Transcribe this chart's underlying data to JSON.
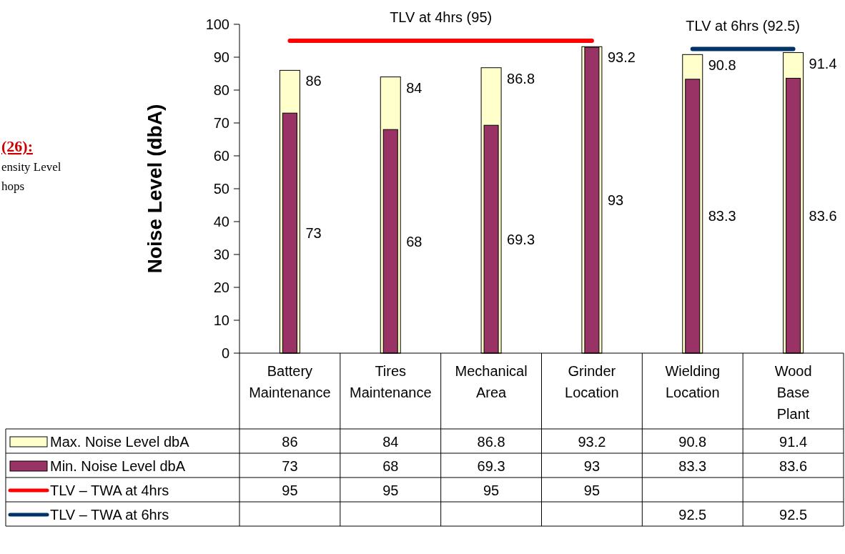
{
  "chart_data": {
    "type": "bar",
    "ylabel": "Noise Level (dbA)",
    "categories": [
      "Battery Maintenance",
      "Tires Maintenance",
      "Mechanical Area",
      "Grinder Location",
      "Wielding Location",
      "Wood Base Plant"
    ],
    "series": [
      {
        "name": "Max. Noise Level dbA",
        "color": "#ffffcc",
        "values": [
          86,
          84,
          86.8,
          93.2,
          90.8,
          91.4
        ]
      },
      {
        "name": "Min. Noise Level dbA",
        "color": "#993366",
        "values": [
          73,
          68,
          69.3,
          93,
          83.3,
          83.6
        ]
      },
      {
        "name": "TLV – TWA at 4hrs",
        "type": "line",
        "color": "#ff0000",
        "values": [
          95,
          95,
          95,
          95,
          null,
          null
        ]
      },
      {
        "name": "TLV – TWA at 6hrs",
        "type": "line",
        "color": "#003366",
        "values": [
          null,
          null,
          null,
          null,
          92.5,
          92.5
        ]
      }
    ],
    "ylim": [
      0,
      100
    ],
    "yticks": [
      0,
      10,
      20,
      30,
      40,
      50,
      60,
      70,
      80,
      90,
      100
    ],
    "grid": false,
    "legend": "bottom",
    "data_labels": true,
    "annotations": [
      {
        "text": "TLV at 4hrs (95)",
        "y": 95
      },
      {
        "text": "TLV at 6hrs (92.5)",
        "y": 92.5
      },
      "(26):",
      "ensity Level",
      "hops",
      {
        "text": "86",
        "x": "Battery Maintenance",
        "y": 86
      },
      {
        "text": "84",
        "x": "Tires Maintenance",
        "y": 84
      },
      {
        "text": "86.8",
        "x": "Mechanical Area",
        "y": 86.8
      },
      {
        "text": "93.2",
        "x": "Grinder Location",
        "y": 93.2
      },
      {
        "text": "90.8",
        "x": "Wielding Location",
        "y": 90.8
      },
      {
        "text": "91.4",
        "x": "Wood Base Plant",
        "y": 91.4
      },
      "73",
      "68",
      "69.3",
      "93",
      "83.3",
      "83.6"
    ]
  }
}
